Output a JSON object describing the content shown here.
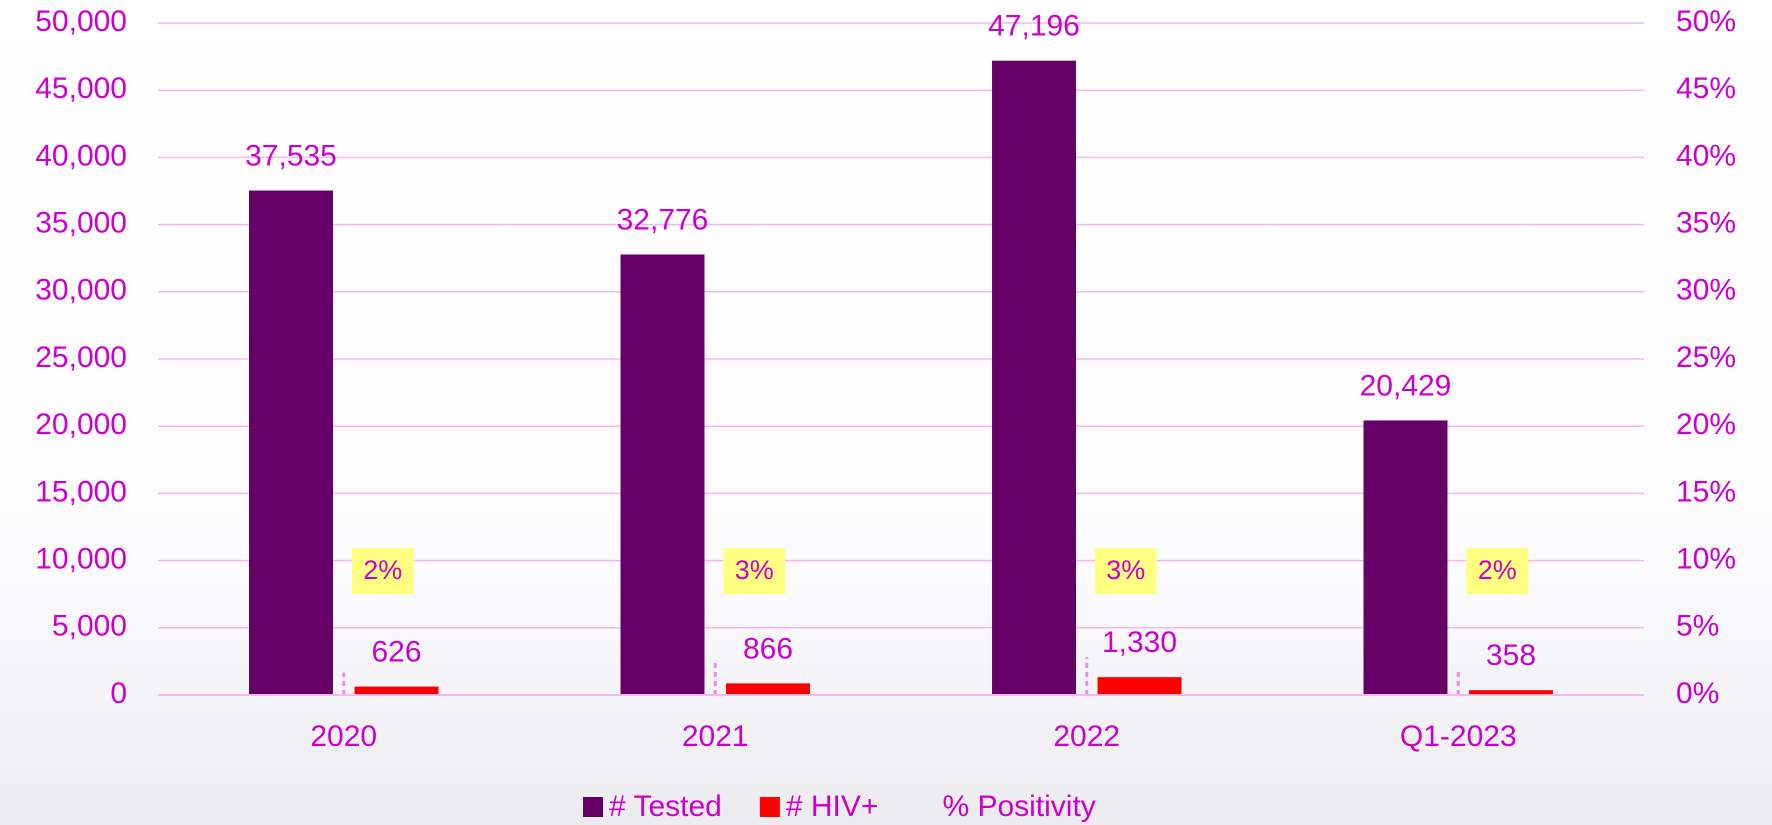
{
  "chart_data": {
    "type": "bar",
    "categories": [
      "2020",
      "2021",
      "2022",
      "Q1-2023"
    ],
    "series": [
      {
        "name": "# Tested",
        "color": "#660066",
        "values": [
          37535,
          32776,
          47196,
          20429
        ],
        "value_labels": [
          "37,535",
          "32,776",
          "47,196",
          "20,429"
        ]
      },
      {
        "name": "# HIV+",
        "color": "#ff0000",
        "values": [
          626,
          866,
          1330,
          358
        ],
        "value_labels": [
          "626",
          "866",
          "1,330",
          "358"
        ]
      },
      {
        "name": "% Positivity",
        "color": "#f08ce8",
        "axis": "y2",
        "values": [
          1.67,
          2.64,
          2.82,
          1.75
        ],
        "value_labels": [
          "2%",
          "3%",
          "3%",
          "2%"
        ]
      }
    ],
    "ylim": [
      0,
      50000
    ],
    "yticks": [
      0,
      {
        "value": 5000,
        "label": "5,000"
      },
      {
        "value": 10000,
        "label": "10,000"
      },
      {
        "value": 15000,
        "label": "15,000"
      },
      {
        "value": 20000,
        "label": "20,000"
      },
      {
        "value": 25000,
        "label": "25,000"
      },
      {
        "value": 30000,
        "label": "30,000"
      },
      {
        "value": 35000,
        "label": "35,000"
      },
      {
        "value": 40000,
        "label": "40,000"
      },
      {
        "value": 45000,
        "label": "45,000"
      },
      {
        "value": 50000,
        "label": "50,000"
      }
    ],
    "y2lim": [
      0,
      50
    ],
    "y2ticks": [
      {
        "value": 0,
        "label": "0%"
      },
      {
        "value": 5,
        "label": "5%"
      },
      {
        "value": 10,
        "label": "10%"
      },
      {
        "value": 15,
        "label": "15%"
      },
      {
        "value": 20,
        "label": "20%"
      },
      {
        "value": 25,
        "label": "25%"
      },
      {
        "value": 30,
        "label": "30%"
      },
      {
        "value": 35,
        "label": "35%"
      },
      {
        "value": 40,
        "label": "40%"
      },
      {
        "value": 45,
        "label": "45%"
      },
      {
        "value": 50,
        "label": "50%"
      }
    ],
    "grid": true,
    "legend": "bottom"
  }
}
